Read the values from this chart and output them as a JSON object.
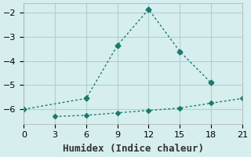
{
  "xlabel": "Humidex (Indice chaleur)",
  "background_color": "#d6eeee",
  "grid_color": "#b0d0d0",
  "line_color": "#1a7a6e",
  "line1_x": [
    0,
    6,
    9,
    12,
    15,
    18
  ],
  "line1_y": [
    -6.0,
    -5.55,
    -3.35,
    -1.85,
    -3.6,
    -4.9
  ],
  "line2_x": [
    3,
    6,
    9,
    12,
    15,
    18,
    21
  ],
  "line2_y": [
    -6.3,
    -6.25,
    -6.15,
    -6.05,
    -5.95,
    -5.75,
    -5.55
  ],
  "xlim": [
    0,
    21
  ],
  "ylim": [
    -6.6,
    -1.6
  ],
  "xticks": [
    0,
    3,
    6,
    9,
    12,
    15,
    18,
    21
  ],
  "yticks": [
    -6,
    -5,
    -4,
    -3,
    -2
  ],
  "tick_fontsize": 8,
  "label_fontsize": 9
}
